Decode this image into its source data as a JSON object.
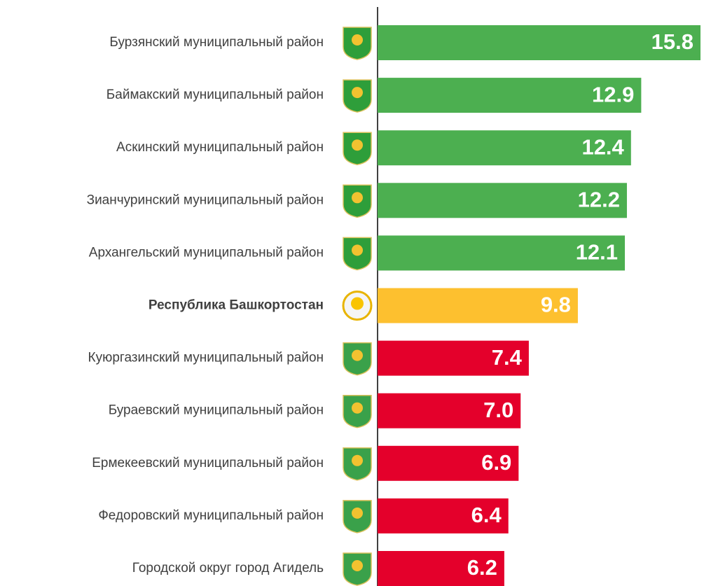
{
  "chart_data": {
    "type": "bar",
    "orientation": "horizontal",
    "categories": [
      "Бурзянский муниципальный район",
      "Баймакский муниципальный район",
      "Аскинский муниципальный район",
      "Зианчуринский муниципальный район",
      "Архангельский муниципальный район",
      "Республика Башкортостан",
      "Куюргазинский муниципальный район",
      "Бураевский муниципальный район",
      "Ермекеевский муниципальный район",
      "Федоровский муниципальный район",
      "Городской округ город Агидель"
    ],
    "values": [
      15.8,
      12.9,
      12.4,
      12.2,
      12.1,
      9.8,
      7.4,
      7.0,
      6.9,
      6.4,
      6.2
    ],
    "value_labels": [
      "15.8",
      "12.9",
      "12.4",
      "12.2",
      "12.1",
      "9.8",
      "7.4",
      "7.0",
      "6.9",
      "6.4",
      "6.2"
    ],
    "colors": [
      "#4caf50",
      "#4caf50",
      "#4caf50",
      "#4caf50",
      "#4caf50",
      "#fdc02f",
      "#e4002b",
      "#e4002b",
      "#e4002b",
      "#e4002b",
      "#e4002b"
    ],
    "highlight": 5
  }
}
